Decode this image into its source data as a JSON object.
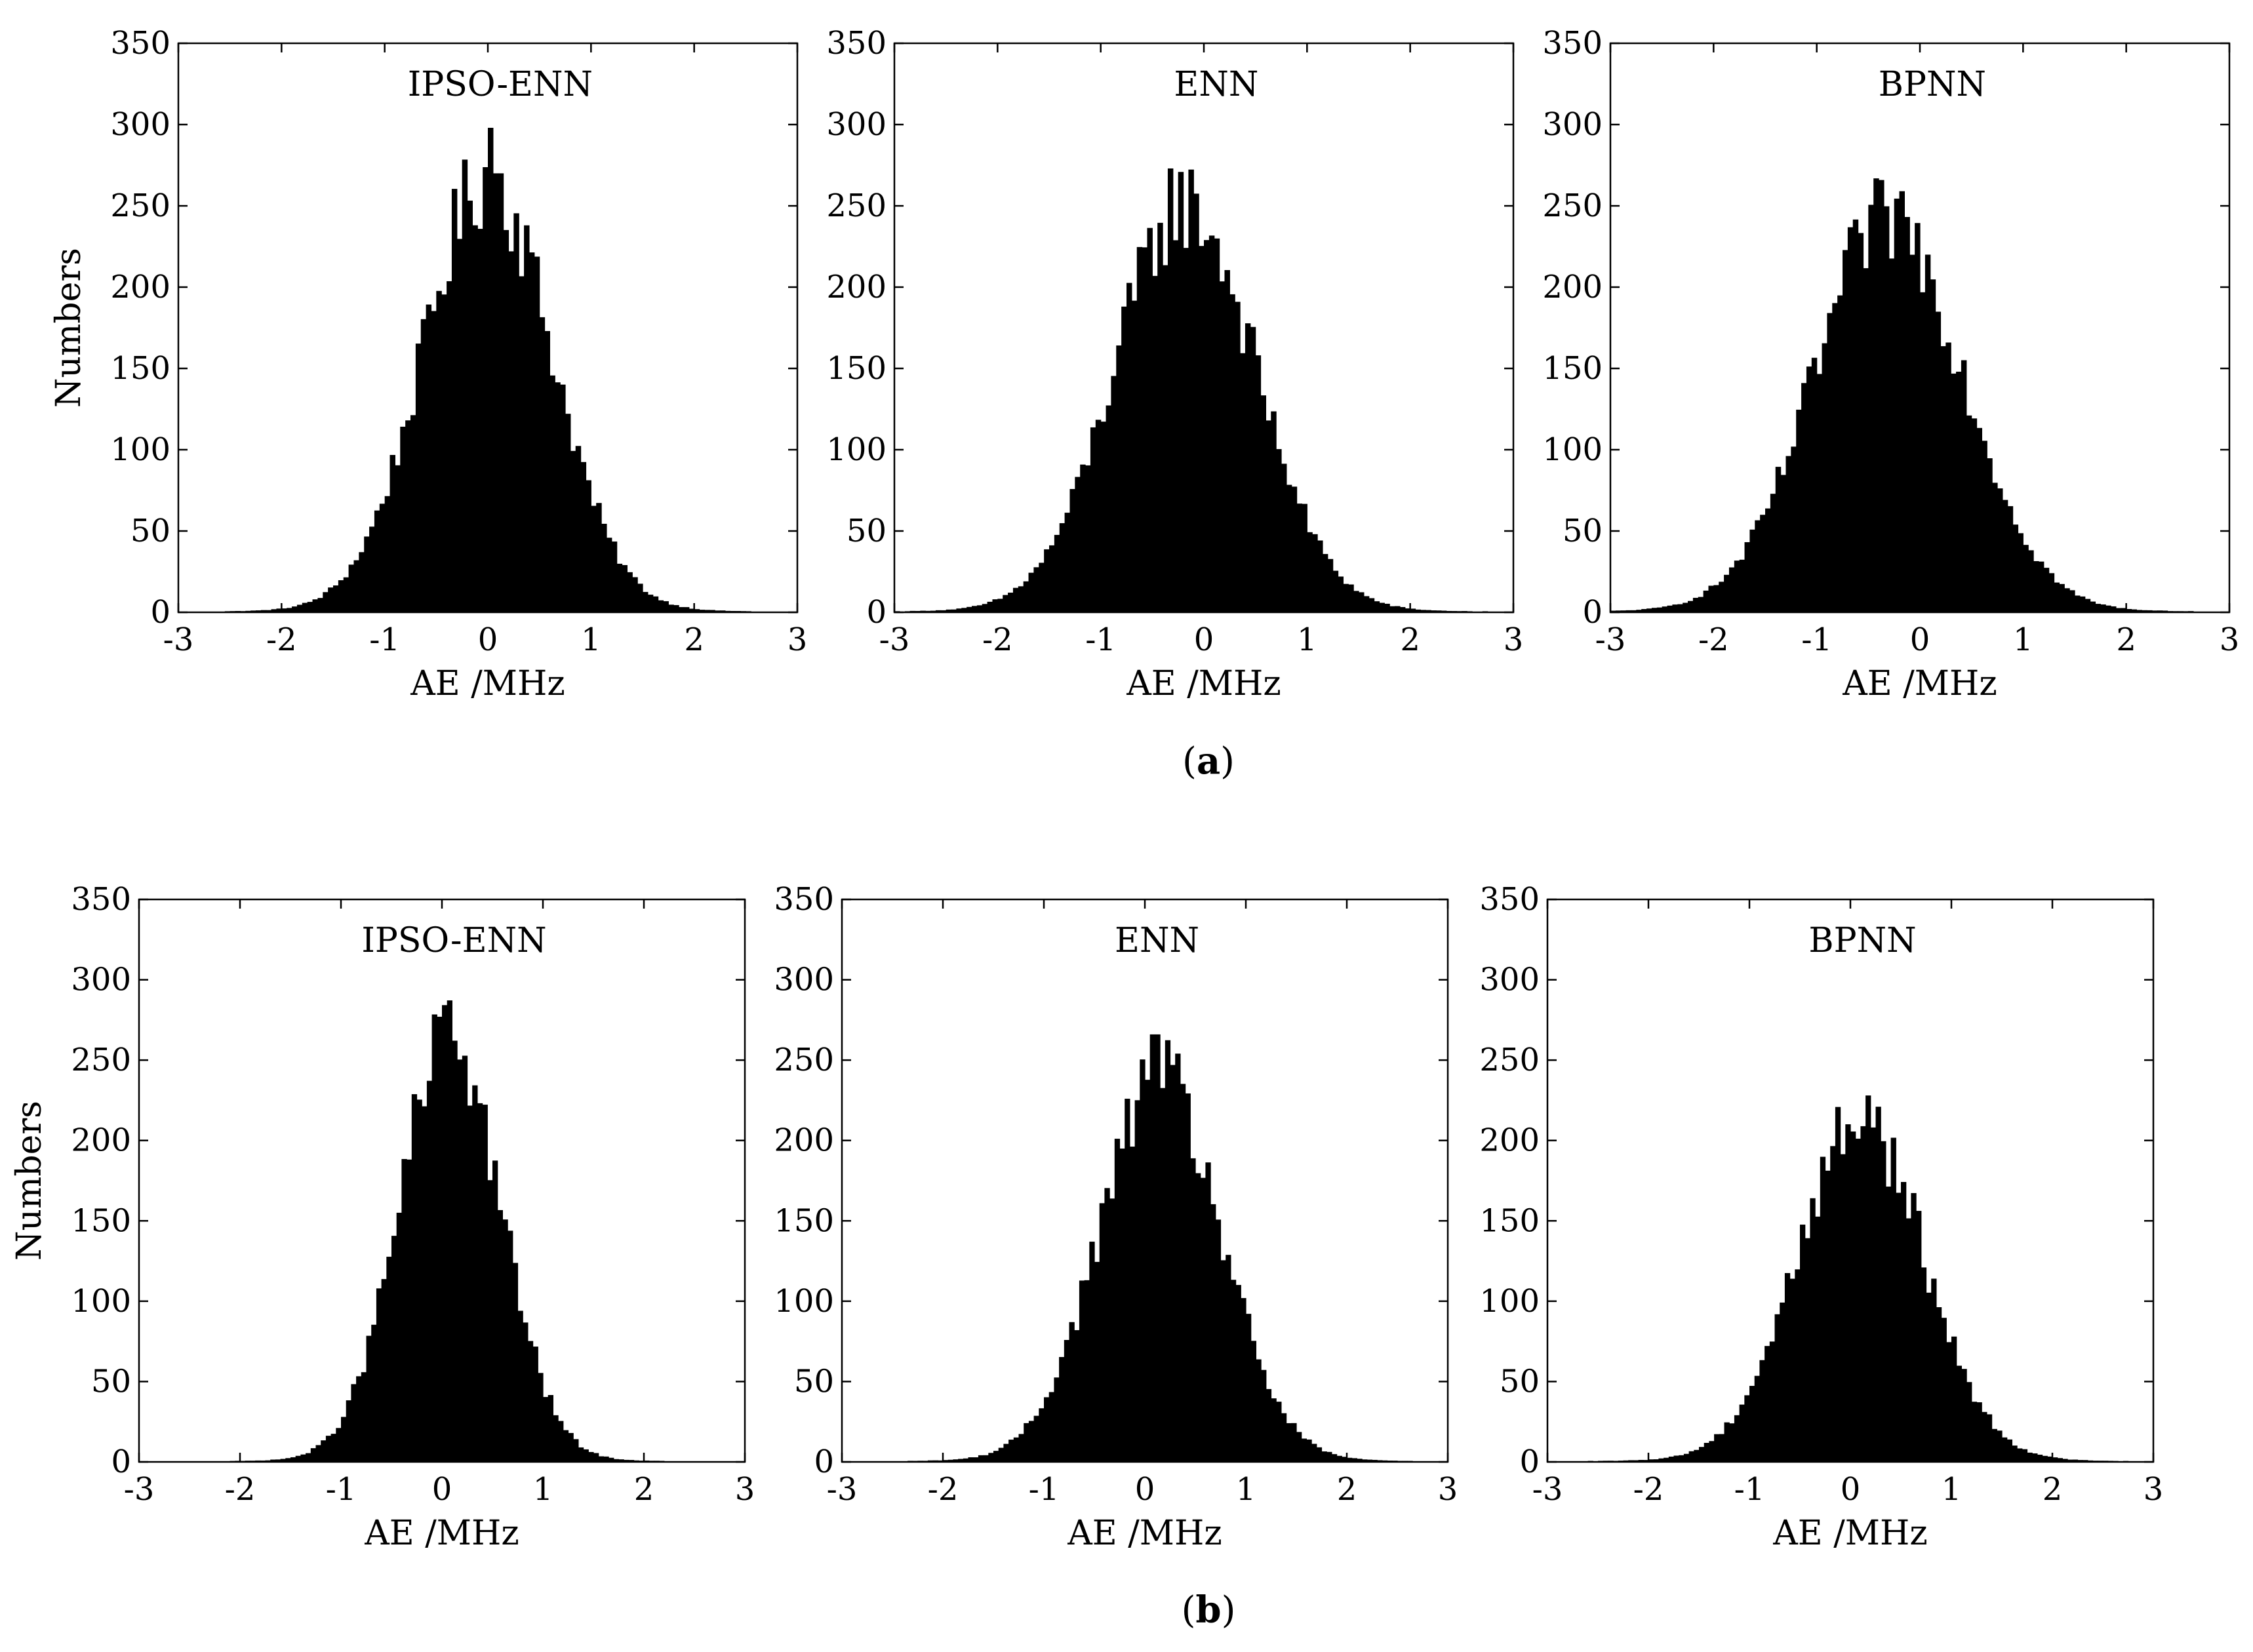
{
  "figure": {
    "caption_a": "(a)",
    "caption_a_letter": "a",
    "caption_b": "(b)",
    "caption_b_letter": "b"
  },
  "chart_data": [
    {
      "type": "bar",
      "group": "a",
      "title": "IPSO-ENN",
      "xlabel": "AE /MHz",
      "ylabel": "Numbers",
      "xlim": [
        -3,
        3
      ],
      "ylim": [
        0,
        350
      ],
      "xticks": [
        "-3",
        "-2",
        "-1",
        "0",
        "1",
        "2",
        "3"
      ],
      "yticks": [
        "0",
        "50",
        "100",
        "150",
        "200",
        "250",
        "300",
        "350"
      ],
      "bin_width": 0.05,
      "center": 0.0,
      "spread": 0.62,
      "peak": 265,
      "highlights": [
        {
          "x": 0.02,
          "y": 298
        },
        {
          "x": 0.1,
          "y": 270
        }
      ]
    },
    {
      "type": "bar",
      "group": "a",
      "title": "ENN",
      "xlabel": "AE /MHz",
      "ylabel": "",
      "xlim": [
        -3,
        3
      ],
      "ylim": [
        0,
        350
      ],
      "xticks": [
        "-3",
        "-2",
        "-1",
        "0",
        "1",
        "2",
        "3"
      ],
      "yticks": [
        "0",
        "50",
        "100",
        "150",
        "200",
        "250",
        "300",
        "350"
      ],
      "bin_width": 0.05,
      "center": -0.18,
      "spread": 0.68,
      "peak": 248,
      "highlights": [
        {
          "x": -0.33,
          "y": 273
        }
      ]
    },
    {
      "type": "bar",
      "group": "a",
      "title": "BPNN",
      "xlabel": "AE /MHz",
      "ylabel": "",
      "xlim": [
        -3,
        3
      ],
      "ylim": [
        0,
        350
      ],
      "xticks": [
        "-3",
        "-2",
        "-1",
        "0",
        "1",
        "2",
        "3"
      ],
      "yticks": [
        "0",
        "50",
        "100",
        "150",
        "200",
        "250",
        "300",
        "350"
      ],
      "bin_width": 0.05,
      "center": -0.3,
      "spread": 0.72,
      "peak": 240,
      "highlights": [
        {
          "x": -0.18,
          "y": 259
        }
      ]
    },
    {
      "type": "bar",
      "group": "b",
      "title": "IPSO-ENN",
      "xlabel": "AE /MHz",
      "ylabel": "Numbers",
      "xlim": [
        -3,
        3
      ],
      "ylim": [
        0,
        350
      ],
      "xticks": [
        "-3",
        "-2",
        "-1",
        "0",
        "1",
        "2",
        "3"
      ],
      "yticks": [
        "0",
        "50",
        "100",
        "150",
        "200",
        "250",
        "300",
        "350"
      ],
      "bin_width": 0.05,
      "center": 0.08,
      "spread": 0.5,
      "peak": 262,
      "highlights": [
        {
          "x": -0.03,
          "y": 277
        }
      ]
    },
    {
      "type": "bar",
      "group": "b",
      "title": "ENN",
      "xlabel": "AE /MHz",
      "ylabel": "",
      "xlim": [
        -3,
        3
      ],
      "ylim": [
        0,
        350
      ],
      "xticks": [
        "-3",
        "-2",
        "-1",
        "0",
        "1",
        "2",
        "3"
      ],
      "yticks": [
        "0",
        "50",
        "100",
        "150",
        "200",
        "250",
        "300",
        "350"
      ],
      "bin_width": 0.05,
      "center": 0.15,
      "spread": 0.6,
      "peak": 235,
      "highlights": [
        {
          "x": 0.1,
          "y": 266
        },
        {
          "x": 0.27,
          "y": 247
        }
      ]
    },
    {
      "type": "bar",
      "group": "b",
      "title": "BPNN",
      "xlabel": "AE /MHz",
      "ylabel": "",
      "xlim": [
        -3,
        3
      ],
      "ylim": [
        0,
        350
      ],
      "xticks": [
        "-3",
        "-2",
        "-1",
        "0",
        "1",
        "2",
        "3"
      ],
      "yticks": [
        "0",
        "50",
        "100",
        "150",
        "200",
        "250",
        "300",
        "350"
      ],
      "bin_width": 0.05,
      "center": 0.1,
      "spread": 0.62,
      "peak": 212,
      "highlights": [
        {
          "x": 0.17,
          "y": 228
        }
      ]
    }
  ]
}
